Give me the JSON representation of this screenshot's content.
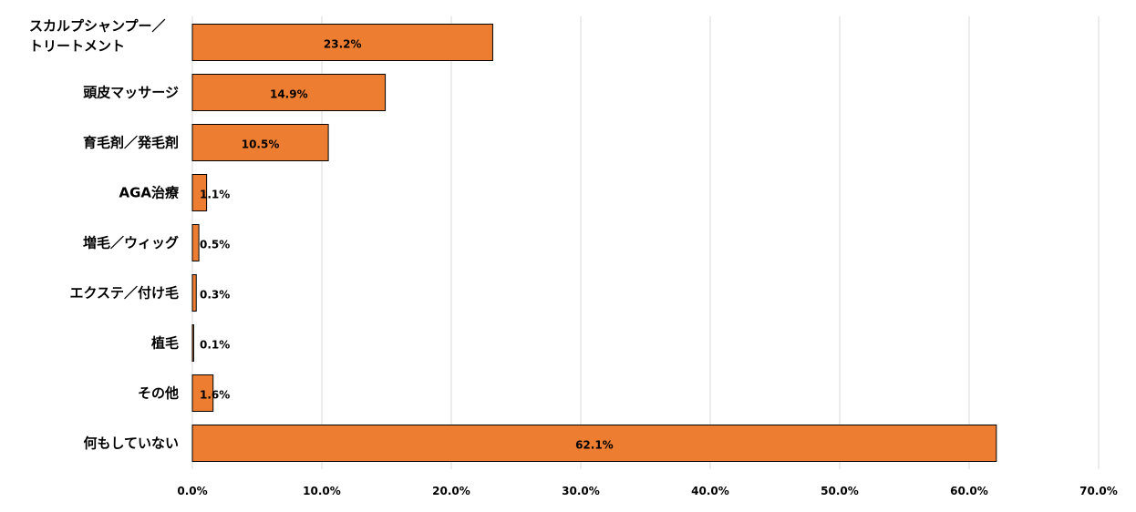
{
  "chart_data": {
    "type": "bar",
    "orientation": "horizontal",
    "categories": [
      [
        "スカルプシャンプー／",
        "トリートメント"
      ],
      [
        "頭皮マッサージ"
      ],
      [
        "育毛剤／発毛剤"
      ],
      [
        "AGA治療"
      ],
      [
        "増毛／ウィッグ"
      ],
      [
        "エクステ／付け毛"
      ],
      [
        "植毛"
      ],
      [
        "その他"
      ],
      [
        "何もしていない"
      ]
    ],
    "values": [
      23.2,
      14.9,
      10.5,
      1.1,
      0.5,
      0.3,
      0.1,
      1.6,
      62.1
    ],
    "data_labels": [
      "23.2%",
      "14.9%",
      "10.5%",
      "1.1%",
      "0.5%",
      "0.3%",
      "0.1%",
      "1.6%",
      "62.1%"
    ],
    "x_ticks": [
      "0.0%",
      "10.0%",
      "20.0%",
      "30.0%",
      "40.0%",
      "50.0%",
      "60.0%",
      "70.0%"
    ],
    "xlim": [
      0,
      70
    ],
    "grid": true,
    "bar_color": "#ED7D31",
    "bar_edge_color": "#000000",
    "grid_color": "#D9D9D9"
  }
}
